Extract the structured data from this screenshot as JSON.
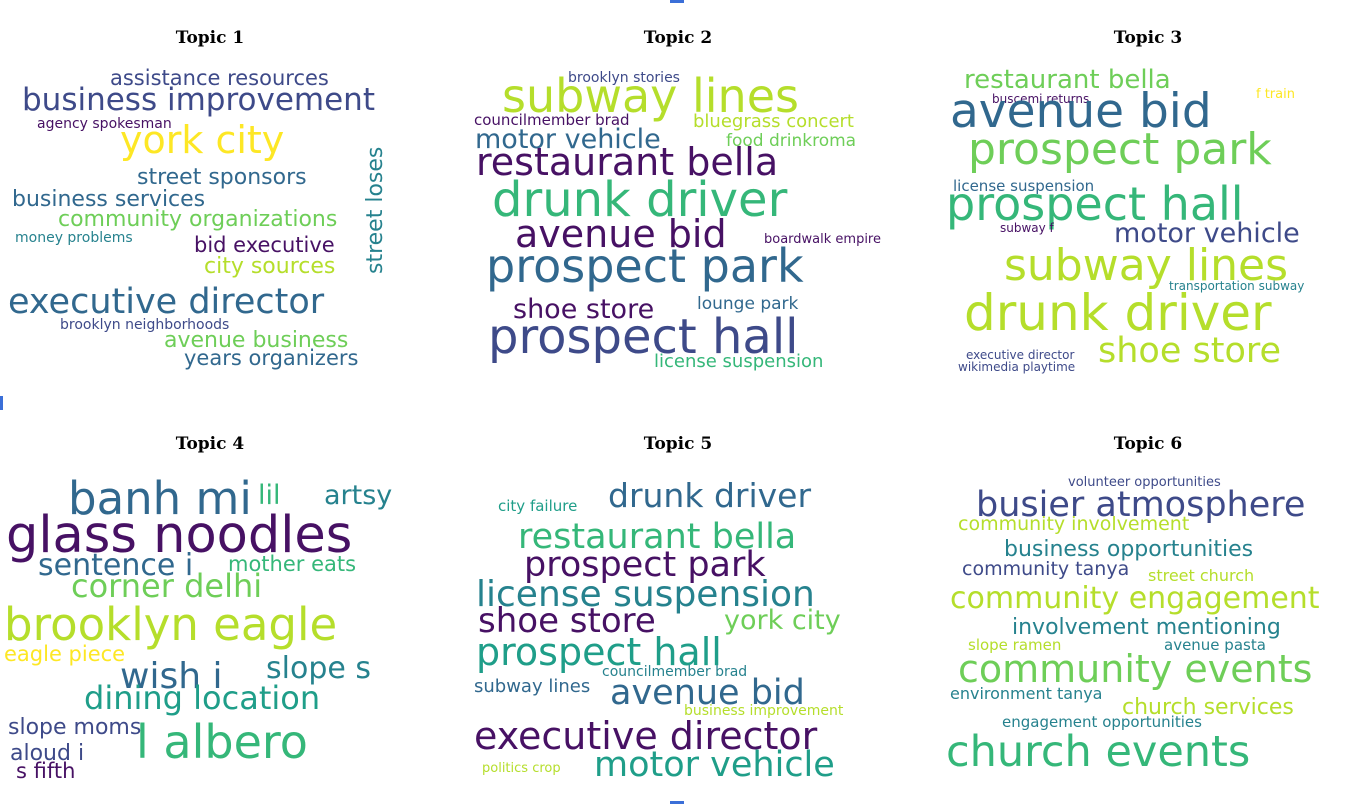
{
  "colors": {
    "dark_purple": "#471164",
    "navy": "#3e4a89",
    "teal_blue": "#31688e",
    "teal": "#26828e",
    "green_teal": "#1f9e89",
    "green": "#35b779",
    "light_green": "#6ece58",
    "lime": "#b5de2b",
    "yellow": "#fde725"
  },
  "chart_data": [
    {
      "type": "wordcloud",
      "title": "Topic 1",
      "words": [
        {
          "text": "assistance resources",
          "color": "#3e4a89"
        },
        {
          "text": "business improvement",
          "color": "#3e4a89"
        },
        {
          "text": "agency spokesman",
          "color": "#471164"
        },
        {
          "text": "york city",
          "color": "#fde725"
        },
        {
          "text": "street sponsors",
          "color": "#31688e"
        },
        {
          "text": "street loses",
          "color": "#26828e"
        },
        {
          "text": "business services",
          "color": "#31688e"
        },
        {
          "text": "community organizations",
          "color": "#6ece58"
        },
        {
          "text": "money problems",
          "color": "#26828e"
        },
        {
          "text": "bid executive",
          "color": "#471164"
        },
        {
          "text": "city sources",
          "color": "#b5de2b"
        },
        {
          "text": "executive director",
          "color": "#31688e"
        },
        {
          "text": "brooklyn neighborhoods",
          "color": "#3e4a89"
        },
        {
          "text": "avenue business",
          "color": "#6ece58"
        },
        {
          "text": "years organizers",
          "color": "#31688e"
        }
      ]
    },
    {
      "type": "wordcloud",
      "title": "Topic 2",
      "words": [
        {
          "text": "brooklyn stories",
          "color": "#3e4a89"
        },
        {
          "text": "subway lines",
          "color": "#b5de2b"
        },
        {
          "text": "councilmember brad",
          "color": "#471164"
        },
        {
          "text": "bluegrass concert",
          "color": "#b5de2b"
        },
        {
          "text": "motor vehicle",
          "color": "#31688e"
        },
        {
          "text": "food drinkroma",
          "color": "#6ece58"
        },
        {
          "text": "restaurant bella",
          "color": "#471164"
        },
        {
          "text": "drunk driver",
          "color": "#35b779"
        },
        {
          "text": "avenue bid",
          "color": "#471164"
        },
        {
          "text": "boardwalk empire",
          "color": "#471164"
        },
        {
          "text": "prospect park",
          "color": "#31688e"
        },
        {
          "text": "shoe store",
          "color": "#471164"
        },
        {
          "text": "lounge park",
          "color": "#31688e"
        },
        {
          "text": "prospect hall",
          "color": "#3e4a89"
        },
        {
          "text": "license suspension",
          "color": "#35b779"
        }
      ]
    },
    {
      "type": "wordcloud",
      "title": "Topic 3",
      "words": [
        {
          "text": "restaurant bella",
          "color": "#6ece58"
        },
        {
          "text": "buscemi returns",
          "color": "#471164"
        },
        {
          "text": "f train",
          "color": "#fde725"
        },
        {
          "text": "avenue bid",
          "color": "#31688e"
        },
        {
          "text": "prospect park",
          "color": "#6ece58"
        },
        {
          "text": "license suspension",
          "color": "#31688e"
        },
        {
          "text": "prospect hall",
          "color": "#35b779"
        },
        {
          "text": "subway f",
          "color": "#471164"
        },
        {
          "text": "motor vehicle",
          "color": "#3e4a89"
        },
        {
          "text": "subway lines",
          "color": "#b5de2b"
        },
        {
          "text": "transportation subway",
          "color": "#26828e"
        },
        {
          "text": "drunk driver",
          "color": "#b5de2b"
        },
        {
          "text": "executive director",
          "color": "#3e4a89"
        },
        {
          "text": "shoe store",
          "color": "#b5de2b"
        },
        {
          "text": "wikimedia playtime",
          "color": "#3e4a89"
        }
      ]
    },
    {
      "type": "wordcloud",
      "title": "Topic 4",
      "words": [
        {
          "text": "banh mi",
          "color": "#31688e"
        },
        {
          "text": "lil",
          "color": "#35b779"
        },
        {
          "text": "artsy",
          "color": "#26828e"
        },
        {
          "text": "glass noodles",
          "color": "#471164"
        },
        {
          "text": "sentence i",
          "color": "#31688e"
        },
        {
          "text": "mother eats",
          "color": "#35b779"
        },
        {
          "text": "corner delhi",
          "color": "#6ece58"
        },
        {
          "text": "brooklyn eagle",
          "color": "#b5de2b"
        },
        {
          "text": "eagle piece",
          "color": "#fde725"
        },
        {
          "text": "wish i",
          "color": "#31688e"
        },
        {
          "text": "slope s",
          "color": "#26828e"
        },
        {
          "text": "dining location",
          "color": "#1f9e89"
        },
        {
          "text": "slope moms",
          "color": "#3e4a89"
        },
        {
          "text": "l albero",
          "color": "#35b779"
        },
        {
          "text": "aloud i",
          "color": "#3e4a89"
        },
        {
          "text": "s fifth",
          "color": "#471164"
        }
      ]
    },
    {
      "type": "wordcloud",
      "title": "Topic 5",
      "words": [
        {
          "text": "city failure",
          "color": "#1f9e89"
        },
        {
          "text": "drunk driver",
          "color": "#31688e"
        },
        {
          "text": "restaurant bella",
          "color": "#35b779"
        },
        {
          "text": "prospect park",
          "color": "#471164"
        },
        {
          "text": "license suspension",
          "color": "#26828e"
        },
        {
          "text": "shoe store",
          "color": "#471164"
        },
        {
          "text": "york city",
          "color": "#6ece58"
        },
        {
          "text": "prospect hall",
          "color": "#1f9e89"
        },
        {
          "text": "councilmember brad",
          "color": "#26828e"
        },
        {
          "text": "subway lines",
          "color": "#31688e"
        },
        {
          "text": "avenue bid",
          "color": "#31688e"
        },
        {
          "text": "business improvement",
          "color": "#b5de2b"
        },
        {
          "text": "executive director",
          "color": "#471164"
        },
        {
          "text": "politics crop",
          "color": "#b5de2b"
        },
        {
          "text": "motor vehicle",
          "color": "#1f9e89"
        }
      ]
    },
    {
      "type": "wordcloud",
      "title": "Topic 6",
      "words": [
        {
          "text": "volunteer opportunities",
          "color": "#3e4a89"
        },
        {
          "text": "busier atmosphere",
          "color": "#3e4a89"
        },
        {
          "text": "community involvement",
          "color": "#b5de2b"
        },
        {
          "text": "business opportunities",
          "color": "#26828e"
        },
        {
          "text": "community tanya",
          "color": "#3e4a89"
        },
        {
          "text": "street church",
          "color": "#b5de2b"
        },
        {
          "text": "community engagement",
          "color": "#b5de2b"
        },
        {
          "text": "involvement mentioning",
          "color": "#26828e"
        },
        {
          "text": "slope ramen",
          "color": "#b5de2b"
        },
        {
          "text": "avenue pasta",
          "color": "#26828e"
        },
        {
          "text": "community events",
          "color": "#6ece58"
        },
        {
          "text": "environment tanya",
          "color": "#26828e"
        },
        {
          "text": "church services",
          "color": "#b5de2b"
        },
        {
          "text": "engagement opportunities",
          "color": "#26828e"
        },
        {
          "text": "church events",
          "color": "#35b779"
        }
      ]
    }
  ]
}
